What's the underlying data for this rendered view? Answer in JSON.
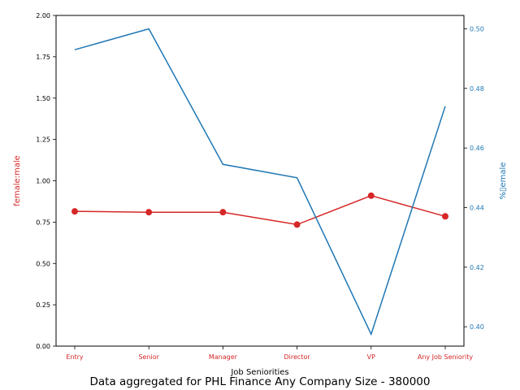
{
  "chart_data": {
    "type": "line",
    "categories": [
      "Entry",
      "Senior",
      "Manager",
      "Director",
      "VP",
      "Any Job Seniority"
    ],
    "xlabel": "Job Seniorities",
    "series": [
      {
        "name": "female:male",
        "axis": "left",
        "color": "#d62728",
        "marker": "circle",
        "values": [
          0.815,
          0.81,
          0.81,
          0.735,
          0.91,
          0.785
        ]
      },
      {
        "name": "%female",
        "axis": "right",
        "color": "#1f77b4",
        "marker": "none",
        "values": [
          0.493,
          0.5,
          0.4545,
          0.45,
          0.3975,
          0.474
        ]
      }
    ],
    "left_axis": {
      "label": "female:male",
      "color": "#d62728",
      "ylim": [
        0,
        2
      ],
      "ticks": [
        "0.00",
        "0.25",
        "0.50",
        "0.75",
        "1.00",
        "1.25",
        "1.50",
        "1.75",
        "2.00"
      ],
      "tick_values": [
        0,
        0.25,
        0.5,
        0.75,
        1.0,
        1.25,
        1.5,
        1.75,
        2.0
      ]
    },
    "right_axis": {
      "label": "%▯emale",
      "color": "#1f77b4",
      "ylim": [
        0.3935,
        0.5045
      ],
      "ticks": [
        "0.40",
        "0.42",
        "0.44",
        "0.46",
        "0.48",
        "0.50"
      ],
      "tick_values": [
        0.4,
        0.42,
        0.44,
        0.46,
        0.48,
        0.5
      ]
    },
    "grid": false,
    "caption": "Data aggregated for PHL Finance Any Company Size - 380000"
  }
}
